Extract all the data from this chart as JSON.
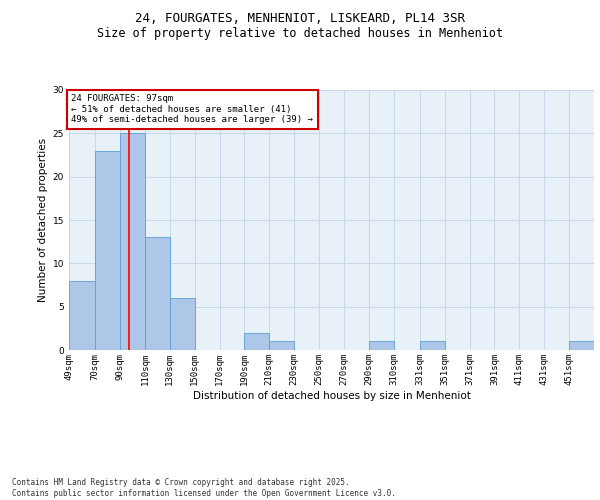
{
  "title_line1": "24, FOURGATES, MENHENIOT, LISKEARD, PL14 3SR",
  "title_line2": "Size of property relative to detached houses in Menheniot",
  "xlabel": "Distribution of detached houses by size in Menheniot",
  "ylabel": "Number of detached properties",
  "bar_labels": [
    "49sqm",
    "70sqm",
    "90sqm",
    "110sqm",
    "130sqm",
    "150sqm",
    "170sqm",
    "190sqm",
    "210sqm",
    "230sqm",
    "250sqm",
    "270sqm",
    "290sqm",
    "310sqm",
    "331sqm",
    "351sqm",
    "371sqm",
    "391sqm",
    "411sqm",
    "431sqm",
    "451sqm"
  ],
  "bar_values": [
    8,
    23,
    25,
    13,
    6,
    0,
    0,
    2,
    1,
    0,
    0,
    0,
    1,
    0,
    1,
    0,
    0,
    0,
    0,
    0,
    1
  ],
  "bar_color": "#aec6e8",
  "bar_edge_color": "#5a9fd4",
  "grid_color": "#c8d8e8",
  "bg_color": "#e8f0f8",
  "red_line_x": 97,
  "bin_edges": [
    49,
    70,
    90,
    110,
    130,
    150,
    170,
    190,
    210,
    230,
    250,
    270,
    290,
    310,
    331,
    351,
    371,
    391,
    411,
    431,
    451,
    471
  ],
  "annotation_text": "24 FOURGATES: 97sqm\n← 51% of detached houses are smaller (41)\n49% of semi-detached houses are larger (39) →",
  "annotation_box_color": "#ffffff",
  "annotation_box_edge": "#cc0000",
  "ylim": [
    0,
    30
  ],
  "yticks": [
    0,
    5,
    10,
    15,
    20,
    25,
    30
  ],
  "footer_text": "Contains HM Land Registry data © Crown copyright and database right 2025.\nContains public sector information licensed under the Open Government Licence v3.0.",
  "title_fontsize": 9,
  "subtitle_fontsize": 8.5,
  "axis_label_fontsize": 7.5,
  "tick_fontsize": 6.5,
  "annotation_fontsize": 6.5,
  "footer_fontsize": 5.5
}
